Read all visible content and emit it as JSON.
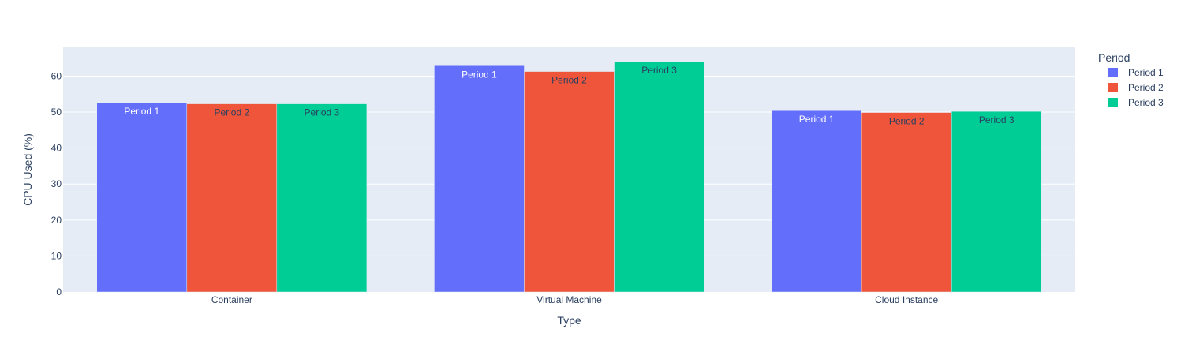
{
  "chart_data": {
    "type": "bar",
    "barmode": "group",
    "categories": [
      "Container",
      "Virtual Machine",
      "Cloud Instance"
    ],
    "series": [
      {
        "name": "Period 1",
        "color": "#636efa",
        "label_color": "#ffffff",
        "values": [
          52.6,
          62.9,
          50.4
        ]
      },
      {
        "name": "Period 2",
        "color": "#ef553b",
        "label_color": "#2a3f5f",
        "values": [
          52.3,
          61.3,
          49.9
        ]
      },
      {
        "name": "Period 3",
        "color": "#00cc96",
        "label_color": "#2a3f5f",
        "values": [
          52.3,
          64.1,
          50.2
        ]
      }
    ],
    "xlabel": "Type",
    "ylabel": "CPU Used (%)",
    "ylim": [
      0,
      68
    ],
    "yticks": [
      0,
      10,
      20,
      30,
      40,
      50,
      60
    ],
    "grid": true,
    "legend": {
      "title": "Period",
      "position": "top-right"
    },
    "colors": {
      "plot_background": "#e5ecf6",
      "grid": "#ffffff",
      "text": "#2a3f5f"
    }
  }
}
